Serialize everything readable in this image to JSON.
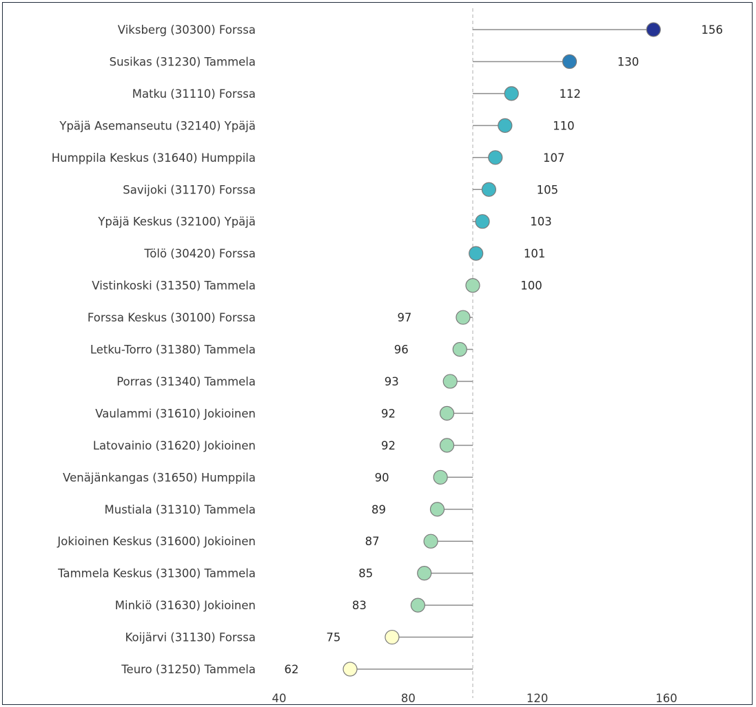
{
  "chart_data": {
    "type": "lollipop",
    "reference_value": 100,
    "xlim": [
      40,
      170
    ],
    "x_ticks": [
      40,
      80,
      120,
      160
    ],
    "categories": [
      "Viksberg (30300) Forssa",
      "Susikas (31230) Tammela",
      "Matku (31110) Forssa",
      "Ypäjä Asemanseutu (32140) Ypäjä",
      "Humppila Keskus (31640) Humppila",
      "Savijoki (31170) Forssa",
      "Ypäjä Keskus (32100) Ypäjä",
      "Tölö (30420) Forssa",
      "Vistinkoski (31350) Tammela",
      "Forssa Keskus (30100) Forssa",
      "Letku-Torro (31380) Tammela",
      "Porras (31340) Tammela",
      "Vaulammi (31610) Jokioinen",
      "Latovainio (31620) Jokioinen",
      "Venäjänkangas (31650) Humppila",
      "Mustiala (31310) Tammela",
      "Jokioinen Keskus (31600) Jokioinen",
      "Tammela Keskus (31300) Tammela",
      "Minkiö (31630) Jokioinen",
      "Koijärvi (31130) Forssa",
      "Teuro (31250) Tammela"
    ],
    "values": [
      156,
      130,
      112,
      110,
      107,
      105,
      103,
      101,
      100,
      97,
      96,
      93,
      92,
      92,
      90,
      89,
      87,
      85,
      83,
      75,
      62
    ],
    "colors": {
      "top": "#253494",
      "high": "#2c7fb8",
      "above": "#41b6c4",
      "below": "#a1dab4",
      "low": "#ffffcc",
      "stem": "#8c8c8c",
      "reference_line": "#c8c8c8"
    }
  }
}
